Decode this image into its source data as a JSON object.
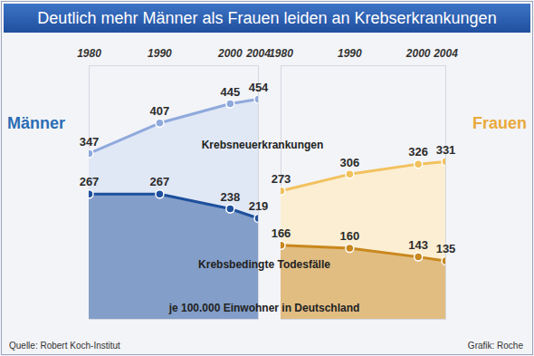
{
  "chart_data": {
    "type": "line",
    "title": "Deutlich mehr Männer als Frauen leiden an Krebserkrankungen",
    "x": [
      1980,
      1990,
      2000,
      2004
    ],
    "xlim": [
      1980,
      2004
    ],
    "xticks": [
      1980,
      1990,
      2000,
      2004
    ],
    "ylim": [
      20,
      520
    ],
    "tick_labels": "x",
    "grid": false,
    "data_labels": true,
    "series_names": [
      "Krebsneuerkrankungen",
      "Krebsbedingte Todesfälle"
    ],
    "unit_note": "je 100.000 Einwohner in Deutschland",
    "source": "Quelle: Robert Koch-Institut",
    "credit": "Grafik: Roche",
    "panels": [
      {
        "title": "Männer",
        "color": "#2a6db5",
        "series": [
          {
            "color": "#8fa9dc",
            "values": [
              347,
              407,
              445,
              454
            ]
          },
          {
            "color": "#1d4f9c",
            "values": [
              267,
              267,
              238,
              219
            ]
          }
        ]
      },
      {
        "title": "Frauen",
        "color": "#e9a93a",
        "series": [
          {
            "color": "#f2c15e",
            "values": [
              273,
              306,
              326,
              331
            ]
          },
          {
            "color": "#c9871c",
            "values": [
              166,
              160,
              143,
              135
            ]
          }
        ]
      }
    ]
  }
}
